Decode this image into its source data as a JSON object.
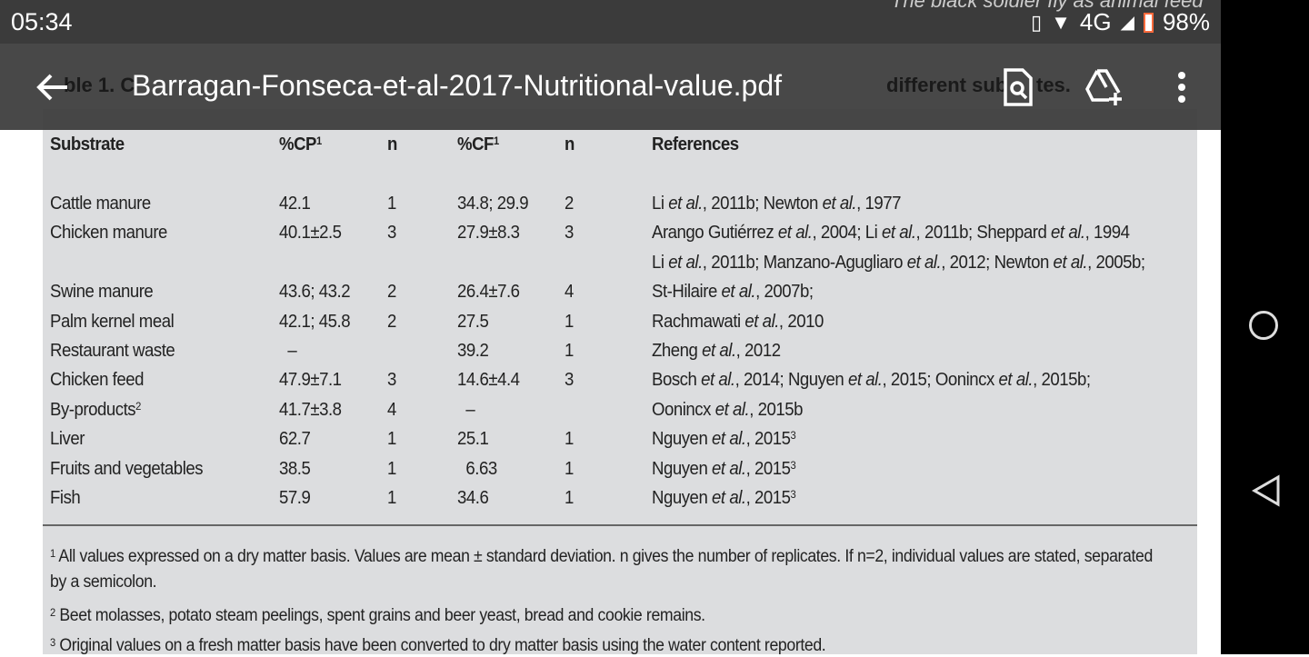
{
  "status_bar": {
    "time": "05:34",
    "network": "4G",
    "battery": "98%"
  },
  "toolbar": {
    "title": "Barragan-Fonseca-et-al-2017-Nutritional-value.pdf"
  },
  "underlying_text": {
    "running_header": "The black soldier fly as animal feed",
    "caption_left": "ble 1. C",
    "caption_right": "different sub",
    "caption_end": "tes."
  },
  "table": {
    "headers": {
      "substrate": "Substrate",
      "cp": "%CP",
      "cp_sup": "1",
      "n1": "n",
      "cf": "%CF",
      "cf_sup": "1",
      "n2": "n",
      "refs": "References"
    },
    "rows": [
      {
        "substrate": "Cattle manure",
        "cp": "42.1",
        "n1": "1",
        "cf": "34.8; 29.9",
        "n2": "2",
        "refs": [
          [
            "Li ",
            0
          ],
          [
            "et al.",
            1
          ],
          [
            ", 2011b; Newton ",
            0
          ],
          [
            "et al.",
            1
          ],
          [
            ", 1977",
            0
          ]
        ]
      },
      {
        "substrate": "Chicken manure",
        "cp": "40.1±2.5",
        "n1": "3",
        "cf": "27.9±8.3",
        "n2": "3",
        "refs": [
          [
            "Arango Gutiérrez ",
            0
          ],
          [
            "et al.",
            1
          ],
          [
            ", 2004; Li ",
            0
          ],
          [
            "et al.",
            1
          ],
          [
            ", 2011b; Sheppard ",
            0
          ],
          [
            "et al.",
            1
          ],
          [
            ", 1994",
            0
          ]
        ]
      },
      {
        "substrate": "",
        "cp": "",
        "n1": "",
        "cf": "",
        "n2": "",
        "refs": [
          [
            "Li ",
            0
          ],
          [
            "et al.",
            1
          ],
          [
            ", 2011b; Manzano-Agugliaro ",
            0
          ],
          [
            "et al.",
            1
          ],
          [
            ", 2012; Newton ",
            0
          ],
          [
            "et al.",
            1
          ],
          [
            ", 2005b;",
            0
          ]
        ]
      },
      {
        "substrate": "Swine manure",
        "cp": "43.6; 43.2",
        "n1": "2",
        "cf": "26.4±7.6",
        "n2": "4",
        "refs": [
          [
            "St-Hilaire ",
            0
          ],
          [
            "et al.",
            1
          ],
          [
            ", 2007b;",
            0
          ]
        ]
      },
      {
        "substrate": "Palm kernel meal",
        "cp": "42.1; 45.8",
        "n1": "2",
        "cf": "27.5",
        "n2": "1",
        "refs": [
          [
            "Rachmawati ",
            0
          ],
          [
            "et al.",
            1
          ],
          [
            ", 2010",
            0
          ]
        ]
      },
      {
        "substrate": "Restaurant waste",
        "cp": "  –",
        "n1": "",
        "cf": "39.2",
        "n2": "1",
        "refs": [
          [
            "Zheng ",
            0
          ],
          [
            "et al.",
            1
          ],
          [
            ", 2012",
            0
          ]
        ]
      },
      {
        "substrate": "Chicken feed",
        "cp": "47.9±7.1",
        "n1": "3",
        "cf": "14.6±4.4",
        "n2": "3",
        "refs": [
          [
            "Bosch ",
            0
          ],
          [
            "et al.",
            1
          ],
          [
            ", 2014; Nguyen ",
            0
          ],
          [
            "et al.",
            1
          ],
          [
            ", 2015; Oonincx ",
            0
          ],
          [
            "et al.",
            1
          ],
          [
            ", 2015b;",
            0
          ]
        ]
      },
      {
        "substrate": "By-products",
        "sub_sup": "2",
        "cp": "41.7±3.8",
        "n1": "4",
        "cf": "  –",
        "n2": "",
        "refs": [
          [
            "Oonincx ",
            0
          ],
          [
            "et al.",
            1
          ],
          [
            ", 2015b",
            0
          ]
        ]
      },
      {
        "substrate": "Liver",
        "cp": "62.7",
        "n1": "1",
        "cf": "25.1",
        "n2": "1",
        "refs": [
          [
            "Nguyen ",
            0
          ],
          [
            "et al.",
            1
          ],
          [
            ", 2015",
            0
          ],
          [
            "3",
            2
          ]
        ]
      },
      {
        "substrate": "Fruits and vegetables",
        "cp": "38.5",
        "n1": "1",
        "cf": "  6.63",
        "n2": "1",
        "refs": [
          [
            "Nguyen ",
            0
          ],
          [
            "et al.",
            1
          ],
          [
            ", 2015",
            0
          ],
          [
            "3",
            2
          ]
        ]
      },
      {
        "substrate": "Fish",
        "cp": "57.9",
        "n1": "1",
        "cf": "34.6",
        "n2": "1",
        "refs": [
          [
            "Nguyen ",
            0
          ],
          [
            "et al.",
            1
          ],
          [
            ", 2015",
            0
          ],
          [
            "3",
            2
          ]
        ]
      }
    ],
    "footnotes": [
      {
        "mark": "1",
        "lines": [
          "All values expressed on a dry matter basis. Values are mean ± standard deviation. n gives the number of replicates. If n=2, individual values are stated, separated",
          "by a semicolon."
        ]
      },
      {
        "mark": "2",
        "lines": [
          "Beet molasses, potato steam peelings, spent grains and beer yeast, bread and cookie remains."
        ]
      },
      {
        "mark": "3",
        "lines": [
          "Original values on a fresh matter basis have been converted to dry matter basis using the water content reported."
        ]
      }
    ]
  }
}
